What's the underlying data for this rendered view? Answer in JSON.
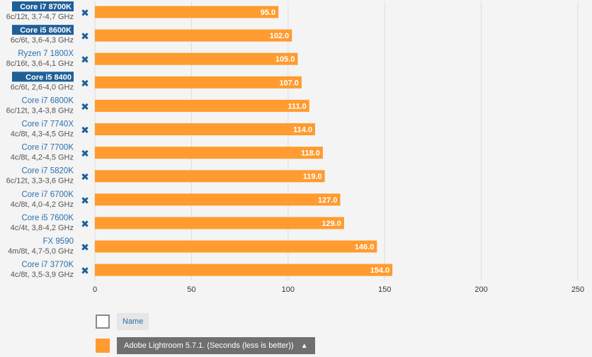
{
  "chart_data": {
    "type": "bar",
    "orientation": "horizontal",
    "categories": [
      {
        "name": "Core i7 8700K",
        "spec": "6c/12t, 3,7-4,7 GHz",
        "highlight": true
      },
      {
        "name": "Core i5 8600K",
        "spec": "6c/6t, 3,6-4,3 GHz",
        "highlight": true
      },
      {
        "name": "Ryzen 7 1800X",
        "spec": "8c/16t, 3,6-4,1 GHz",
        "highlight": false
      },
      {
        "name": "Core i5 8400",
        "spec": "6c/6t, 2,6-4,0 GHz",
        "highlight": true
      },
      {
        "name": "Core i7 6800K",
        "spec": "6c/12t, 3,4-3,8 GHz",
        "highlight": false
      },
      {
        "name": "Core i7 7740X",
        "spec": "4c/8t, 4,3-4,5 GHz",
        "highlight": false
      },
      {
        "name": "Core i7 7700K",
        "spec": "4c/8t, 4,2-4,5 GHz",
        "highlight": false
      },
      {
        "name": "Core i7 5820K",
        "spec": "6c/12t, 3,3-3,6 GHz",
        "highlight": false
      },
      {
        "name": "Core i7 6700K",
        "spec": "4c/8t, 4,0-4,2 GHz",
        "highlight": false
      },
      {
        "name": "Core i5 7600K",
        "spec": "4c/4t, 3,8-4,2 GHz",
        "highlight": false
      },
      {
        "name": "FX 9590",
        "spec": "4m/8t, 4,7-5,0 GHz",
        "highlight": false
      },
      {
        "name": "Core i7 3770K",
        "spec": "4c/8t, 3,5-3,9 GHz",
        "highlight": false
      }
    ],
    "value_labels": [
      "95.0",
      "102.0",
      "105.0",
      "107.0",
      "111.0",
      "114.0",
      "118.0",
      "119.0",
      "127.0",
      "129.0",
      "146.0",
      "154.0"
    ],
    "series": [
      {
        "name": "Adobe Lightroom 5.7.1. (Seconds (less is better))",
        "values": [
          95,
          102,
          105,
          107,
          111,
          114,
          118,
          119,
          127,
          129,
          146,
          154
        ]
      }
    ],
    "xticks": [
      0,
      50,
      100,
      150,
      200,
      250
    ],
    "xlim": [
      0,
      250
    ],
    "grid": true,
    "remove_glyph": "✖",
    "colors": {
      "bar": "#ff9b2f",
      "highlight": "#1f5f99",
      "grid": "#dddddd"
    }
  },
  "legend": {
    "name_label": "Name",
    "series_label": "Adobe Lightroom 5.7.1. (Seconds (less is better))",
    "arrow": "▲"
  }
}
